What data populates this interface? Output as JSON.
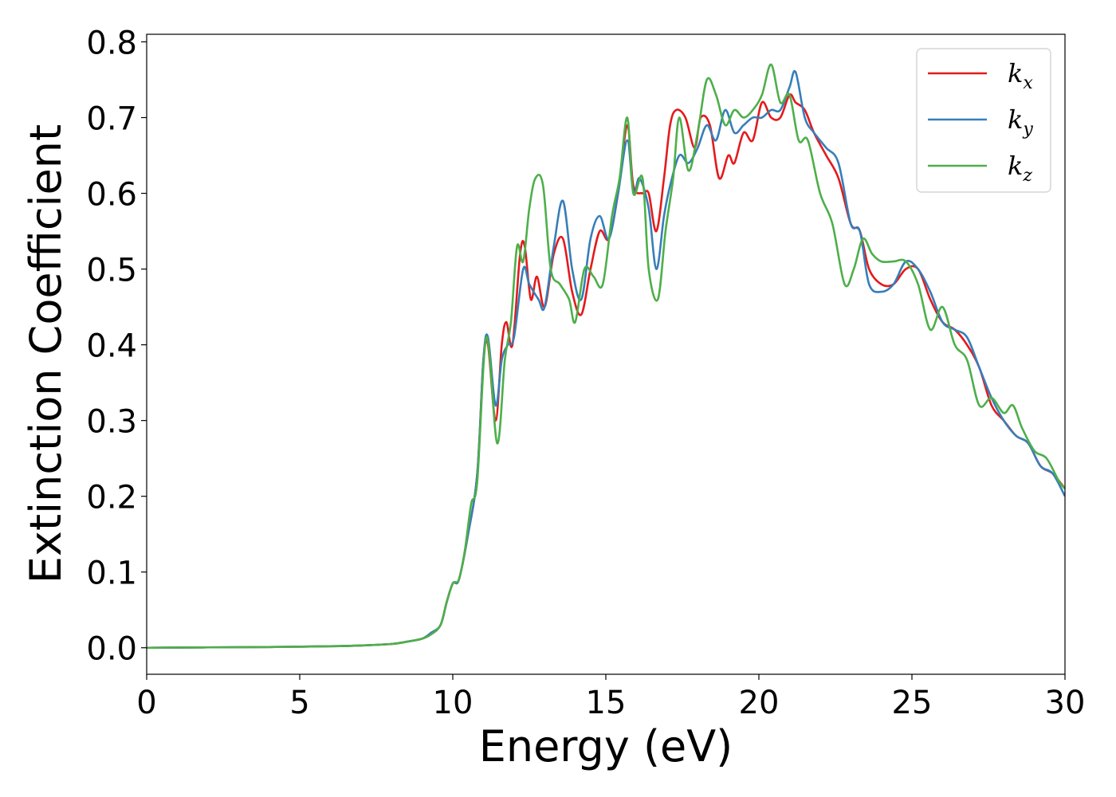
{
  "chart_data": {
    "type": "line",
    "title": "",
    "xlabel": "Energy (eV)",
    "ylabel": "Extinction Coefficient",
    "xlim": [
      0,
      30
    ],
    "ylim": [
      -0.035,
      0.81
    ],
    "xticks": [
      0,
      5,
      10,
      15,
      20,
      25,
      30
    ],
    "yticks": [
      0.0,
      0.1,
      0.2,
      0.3,
      0.4,
      0.5,
      0.6,
      0.7,
      0.8
    ],
    "xtick_labels": [
      "0",
      "5",
      "10",
      "15",
      "20",
      "25",
      "30"
    ],
    "ytick_labels": [
      "0.0",
      "0.1",
      "0.2",
      "0.3",
      "0.4",
      "0.5",
      "0.6",
      "0.7",
      "0.8"
    ],
    "grid": false,
    "legend_position": "top-right",
    "series": [
      {
        "name": "k_x",
        "label_base": "k",
        "label_sub": "x",
        "color": "#e41a1c",
        "x": [
          0,
          2,
          4,
          6,
          7,
          8,
          8.5,
          9,
          9.3,
          9.6,
          9.8,
          10.0,
          10.2,
          10.5,
          10.8,
          11.0,
          11.15,
          11.4,
          11.6,
          11.75,
          11.95,
          12.2,
          12.35,
          12.55,
          12.75,
          13.0,
          13.3,
          13.6,
          13.9,
          14.2,
          14.5,
          14.8,
          15.1,
          15.4,
          15.7,
          15.9,
          16.2,
          16.4,
          16.65,
          16.9,
          17.1,
          17.3,
          17.6,
          17.9,
          18.1,
          18.4,
          18.7,
          19.0,
          19.2,
          19.5,
          19.8,
          20.1,
          20.4,
          20.7,
          21.0,
          21.2,
          21.5,
          21.8,
          22.2,
          22.6,
          23.0,
          23.3,
          23.6,
          24.0,
          24.4,
          24.8,
          25.2,
          25.6,
          26.0,
          26.4,
          26.8,
          27.2,
          27.6,
          28.0,
          28.4,
          28.8,
          29.2,
          29.6,
          30.0
        ],
        "values": [
          0.0,
          0.0005,
          0.001,
          0.002,
          0.003,
          0.005,
          0.008,
          0.012,
          0.018,
          0.03,
          0.06,
          0.085,
          0.09,
          0.15,
          0.23,
          0.38,
          0.4,
          0.3,
          0.4,
          0.43,
          0.4,
          0.52,
          0.53,
          0.46,
          0.49,
          0.45,
          0.52,
          0.54,
          0.47,
          0.44,
          0.5,
          0.55,
          0.54,
          0.6,
          0.69,
          0.61,
          0.6,
          0.6,
          0.55,
          0.62,
          0.69,
          0.71,
          0.7,
          0.66,
          0.7,
          0.69,
          0.62,
          0.65,
          0.64,
          0.68,
          0.67,
          0.72,
          0.7,
          0.7,
          0.73,
          0.72,
          0.71,
          0.68,
          0.65,
          0.62,
          0.56,
          0.55,
          0.5,
          0.48,
          0.48,
          0.5,
          0.5,
          0.46,
          0.43,
          0.42,
          0.4,
          0.37,
          0.32,
          0.3,
          0.28,
          0.27,
          0.24,
          0.23,
          0.21
        ]
      },
      {
        "name": "k_y",
        "label_base": "k",
        "label_sub": "y",
        "color": "#377eb8",
        "x": [
          0,
          2,
          4,
          6,
          7,
          8,
          8.5,
          9,
          9.3,
          9.6,
          9.8,
          10.0,
          10.2,
          10.5,
          10.8,
          11.0,
          11.15,
          11.4,
          11.6,
          11.8,
          12.0,
          12.3,
          12.5,
          12.8,
          13.0,
          13.3,
          13.6,
          13.9,
          14.2,
          14.5,
          14.8,
          15.1,
          15.4,
          15.7,
          15.9,
          16.1,
          16.4,
          16.65,
          16.9,
          17.1,
          17.4,
          17.7,
          18.0,
          18.3,
          18.6,
          18.9,
          19.2,
          19.5,
          19.8,
          20.1,
          20.4,
          20.7,
          21.0,
          21.2,
          21.5,
          21.8,
          22.2,
          22.6,
          23.0,
          23.3,
          23.6,
          24.0,
          24.4,
          24.8,
          25.2,
          25.6,
          26.0,
          26.4,
          26.8,
          27.2,
          27.6,
          28.0,
          28.4,
          28.8,
          29.2,
          29.6,
          30.0
        ],
        "values": [
          0.0,
          0.0005,
          0.001,
          0.002,
          0.003,
          0.005,
          0.008,
          0.012,
          0.02,
          0.03,
          0.06,
          0.085,
          0.09,
          0.15,
          0.23,
          0.38,
          0.41,
          0.32,
          0.38,
          0.4,
          0.41,
          0.5,
          0.48,
          0.46,
          0.45,
          0.53,
          0.59,
          0.5,
          0.46,
          0.54,
          0.57,
          0.54,
          0.6,
          0.67,
          0.6,
          0.62,
          0.58,
          0.5,
          0.57,
          0.61,
          0.65,
          0.64,
          0.66,
          0.69,
          0.67,
          0.71,
          0.68,
          0.69,
          0.7,
          0.7,
          0.71,
          0.71,
          0.74,
          0.76,
          0.7,
          0.68,
          0.66,
          0.64,
          0.56,
          0.55,
          0.48,
          0.47,
          0.48,
          0.51,
          0.5,
          0.47,
          0.43,
          0.42,
          0.41,
          0.37,
          0.33,
          0.3,
          0.28,
          0.27,
          0.24,
          0.23,
          0.2
        ]
      },
      {
        "name": "k_z",
        "label_base": "k",
        "label_sub": "z",
        "color": "#4daf4a",
        "x": [
          0,
          2,
          4,
          6,
          7,
          8,
          8.5,
          9,
          9.3,
          9.6,
          9.8,
          10.0,
          10.2,
          10.4,
          10.6,
          10.8,
          11.1,
          11.45,
          11.7,
          11.9,
          12.1,
          12.3,
          12.5,
          12.7,
          12.95,
          13.2,
          13.5,
          13.8,
          14.0,
          14.3,
          14.6,
          14.9,
          15.2,
          15.45,
          15.7,
          15.9,
          16.2,
          16.4,
          16.7,
          16.95,
          17.2,
          17.4,
          17.7,
          18.0,
          18.3,
          18.6,
          18.9,
          19.2,
          19.5,
          19.8,
          20.1,
          20.4,
          20.7,
          21.0,
          21.3,
          21.6,
          22.0,
          22.4,
          22.8,
          23.1,
          23.4,
          23.7,
          24.0,
          24.4,
          24.8,
          25.2,
          25.6,
          26.0,
          26.4,
          26.8,
          27.2,
          27.6,
          28.0,
          28.3,
          28.6,
          29.0,
          29.4,
          29.8,
          30.0
        ],
        "values": [
          0.0,
          0.0005,
          0.001,
          0.002,
          0.003,
          0.005,
          0.008,
          0.012,
          0.018,
          0.03,
          0.06,
          0.085,
          0.09,
          0.13,
          0.19,
          0.22,
          0.41,
          0.27,
          0.38,
          0.43,
          0.53,
          0.51,
          0.58,
          0.62,
          0.61,
          0.5,
          0.48,
          0.46,
          0.43,
          0.5,
          0.49,
          0.48,
          0.57,
          0.62,
          0.7,
          0.6,
          0.62,
          0.5,
          0.46,
          0.55,
          0.62,
          0.7,
          0.63,
          0.68,
          0.75,
          0.73,
          0.69,
          0.71,
          0.7,
          0.71,
          0.73,
          0.77,
          0.72,
          0.73,
          0.67,
          0.67,
          0.6,
          0.56,
          0.48,
          0.5,
          0.54,
          0.52,
          0.51,
          0.51,
          0.51,
          0.48,
          0.42,
          0.45,
          0.4,
          0.38,
          0.32,
          0.33,
          0.31,
          0.32,
          0.29,
          0.26,
          0.25,
          0.22,
          0.21
        ]
      }
    ]
  }
}
